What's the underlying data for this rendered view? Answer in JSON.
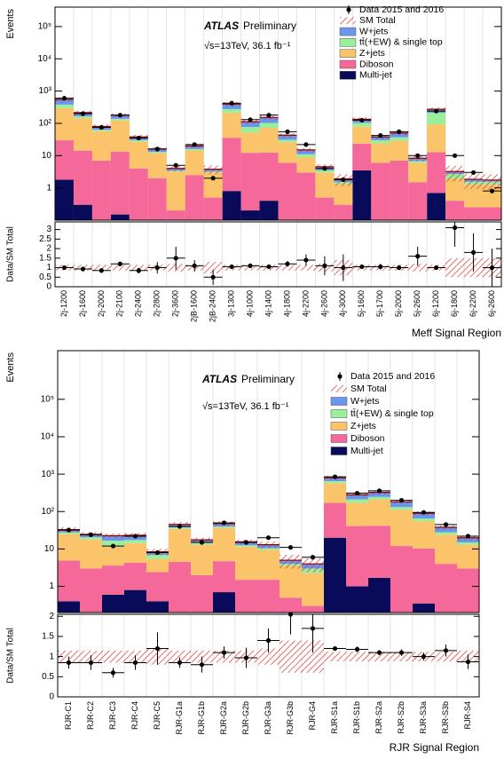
{
  "chart_data": [
    {
      "type": "stacked_bar",
      "xlabel": "Meff Signal Region",
      "ylabel": "Events",
      "annotations": [
        "ATLAS",
        "Preliminary",
        "√s=13TeV, 36.1 fb⁻¹"
      ],
      "categories": [
        "2j-1200",
        "2j-1600",
        "2j-2000",
        "2j-2100",
        "2j-2400",
        "2j-2800",
        "2j-3600",
        "2jB-1600",
        "2jB-2400",
        "3j-1300",
        "4j-1000",
        "4j-1400",
        "4j-1800",
        "4j-2200",
        "4j-2600",
        "4j-3000",
        "5j-1600",
        "5j-1700",
        "5j-2000",
        "5j-2600",
        "6j-1200",
        "6j-1800",
        "6j-2200",
        "6j-2600"
      ],
      "log_scale": true,
      "ylim": [
        0.1,
        400000
      ],
      "yticks": [
        1,
        10,
        {
          "value": 100,
          "label": "10²"
        },
        {
          "value": 1000,
          "label": "10³"
        },
        {
          "value": 10000,
          "label": "10⁴"
        },
        {
          "value": 100000,
          "label": "10⁵"
        }
      ],
      "data": {
        "name": "Data 2015 and 2016",
        "color": "#000000",
        "values": [
          600,
          200,
          75,
          180,
          35,
          16,
          5,
          22,
          2,
          420,
          130,
          180,
          55,
          22,
          4,
          1.8,
          125,
          42,
          55,
          10,
          240,
          10,
          3,
          0.8
        ]
      },
      "sm_total": {
        "name": "SM Total",
        "color": "#e03030",
        "uncertainty": [
          0.15,
          0.15,
          0.15,
          0.15,
          0.15,
          0.15,
          0.2,
          0.15,
          0.3,
          0.15,
          0.15,
          0.15,
          0.15,
          0.15,
          0.2,
          0.4,
          0.15,
          0.15,
          0.15,
          0.2,
          0.15,
          0.5,
          0.5,
          0.5
        ]
      },
      "series": [
        {
          "name": "W+jets",
          "color": "#6a96ee",
          "values": [
            170,
            50,
            17,
            40,
            8,
            3,
            0.6,
            4,
            0.6,
            120,
            35,
            50,
            12,
            4,
            1,
            0.4,
            30,
            8,
            13,
            1.5,
            60,
            0.5,
            0.3,
            0.2
          ]
        },
        {
          "name": "tt̄(+EW) & single top",
          "color": "#9aef9a",
          "values": [
            80,
            20,
            6,
            15,
            3,
            1,
            0.2,
            1.5,
            0.2,
            60,
            25,
            30,
            5,
            2,
            0.5,
            0.2,
            25,
            6,
            8,
            0.8,
            120,
            0.8,
            0.3,
            0.3
          ]
        },
        {
          "name": "Z+jets",
          "color": "#fbc46a",
          "values": [
            270,
            130,
            50,
            110,
            23,
            10,
            3,
            12,
            2.5,
            180,
            40,
            60,
            20,
            6,
            2.5,
            1,
            55,
            18,
            22,
            4.5,
            80,
            1.5,
            1,
            1
          ]
        },
        {
          "name": "Diboson",
          "color": "#f5689a",
          "values": [
            28,
            14,
            7,
            13,
            4,
            2,
            0.2,
            2.5,
            0.5,
            35,
            12,
            12,
            6,
            3,
            0.5,
            0.3,
            20,
            6,
            7,
            1.5,
            12,
            0.4,
            0.25,
            0.25
          ]
        },
        {
          "name": "Multi-jet",
          "color": "#0a0a5a",
          "values": [
            1.8,
            0.3,
            0,
            0.15,
            0,
            0,
            0,
            0,
            0,
            0.8,
            0.2,
            0.4,
            0,
            0,
            0,
            0,
            3.5,
            0,
            0,
            0,
            0.7,
            0,
            0,
            0
          ]
        }
      ],
      "ratio": {
        "ylabel": "Data/SM Total",
        "ylim": [
          0,
          3.4
        ],
        "yticks": [
          0,
          0.5,
          1,
          1.5,
          2,
          2.5,
          3
        ],
        "values": [
          1.0,
          0.93,
          0.85,
          1.2,
          0.85,
          1.0,
          1.5,
          1.1,
          0.5,
          1.05,
          1.1,
          1.05,
          1.2,
          1.4,
          1.1,
          1.0,
          1.05,
          1.05,
          1.0,
          1.6,
          1.0,
          3.1,
          1.8,
          1.0
        ],
        "errors": [
          0.05,
          0.07,
          0.1,
          0.08,
          0.15,
          0.3,
          0.6,
          0.3,
          0.4,
          0.05,
          0.1,
          0.08,
          0.15,
          0.3,
          0.5,
          0.7,
          0.1,
          0.15,
          0.13,
          0.5,
          0.07,
          1.0,
          1.0,
          1.0
        ]
      }
    },
    {
      "type": "stacked_bar",
      "xlabel": "RJR Signal Region",
      "ylabel": "Events",
      "annotations": [
        "ATLAS",
        "Preliminary",
        "√s=13TeV, 36.1 fb⁻¹"
      ],
      "categories": [
        "RJR-C1",
        "RJR-C2",
        "RJR-C3",
        "RJR-C4",
        "RJR-C5",
        "RJR-G1a",
        "RJR-G1b",
        "RJR-G2a",
        "RJR-G2b",
        "RJR-G3a",
        "RJR-G3b",
        "RJR-G4",
        "RJR-S1a",
        "RJR-S1b",
        "RJR-S2a",
        "RJR-S2b",
        "RJR-S3a",
        "RJR-S3b",
        "RJR-S4"
      ],
      "log_scale": true,
      "ylim": [
        0.2,
        2000000
      ],
      "yticks": [
        1,
        10,
        {
          "value": 100,
          "label": "10²"
        },
        {
          "value": 1000,
          "label": "10³"
        },
        {
          "value": 10000,
          "label": "10⁴"
        },
        {
          "value": 100000,
          "label": "10⁵"
        }
      ],
      "data": {
        "name": "Data 2015 and 2016",
        "color": "#000000",
        "values": [
          32,
          24,
          12,
          22,
          8,
          40,
          15,
          50,
          15,
          20,
          11,
          6,
          850,
          310,
          360,
          200,
          95,
          45,
          22
        ]
      },
      "sm_total": {
        "name": "SM Total",
        "color": "#e03030",
        "uncertainty": [
          0.15,
          0.15,
          0.15,
          0.15,
          0.2,
          0.15,
          0.15,
          0.15,
          0.15,
          0.2,
          0.4,
          0.4,
          0.12,
          0.12,
          0.12,
          0.12,
          0.12,
          0.12,
          0.15
        ]
      },
      "series": [
        {
          "name": "W+jets",
          "color": "#6a96ee",
          "values": [
            5,
            4,
            6,
            6,
            1.5,
            8,
            3,
            8,
            3,
            2.5,
            1,
            1,
            150,
            70,
            80,
            50,
            25,
            10,
            5
          ]
        },
        {
          "name": "tt̄(+EW) & single top",
          "color": "#9aef9a",
          "values": [
            3,
            2.5,
            5,
            3,
            1.5,
            3,
            1.5,
            3,
            1,
            1,
            0.5,
            0.7,
            80,
            40,
            35,
            20,
            10,
            4,
            2
          ]
        },
        {
          "name": "Z+jets",
          "color": "#fbc46a",
          "values": [
            20,
            15,
            8,
            10,
            3,
            30,
            11,
            32,
            10,
            8,
            3,
            2,
            400,
            130,
            170,
            100,
            45,
            20,
            10
          ]
        },
        {
          "name": "Diboson",
          "color": "#f5689a",
          "values": [
            4.5,
            3,
            3,
            3.5,
            2,
            4.5,
            2,
            4,
            1.5,
            1.5,
            0.5,
            0.3,
            150,
            40,
            40,
            12,
            10,
            4,
            3
          ]
        },
        {
          "name": "Multi-jet",
          "color": "#0a0a5a",
          "values": [
            0.4,
            0,
            0.6,
            0.8,
            0.4,
            0,
            0,
            0.7,
            0,
            0,
            0,
            0,
            20,
            1.0,
            1.7,
            0,
            0.35,
            0,
            0
          ]
        }
      ],
      "ratio": {
        "ylabel": "Data/SM Total",
        "ylim": [
          0,
          2.05
        ],
        "yticks": [
          0,
          0.5,
          1,
          1.5,
          2
        ],
        "values": [
          0.85,
          0.85,
          0.6,
          0.85,
          1.2,
          0.85,
          0.8,
          1.1,
          0.97,
          1.4,
          2.05,
          1.7,
          1.2,
          1.18,
          1.1,
          1.1,
          1.0,
          1.15,
          0.87
        ],
        "errors": [
          0.15,
          0.18,
          0.12,
          0.18,
          0.4,
          0.13,
          0.2,
          0.15,
          0.25,
          0.3,
          0.5,
          0.6,
          0.05,
          0.07,
          0.06,
          0.08,
          0.1,
          0.15,
          0.18
        ]
      }
    }
  ]
}
